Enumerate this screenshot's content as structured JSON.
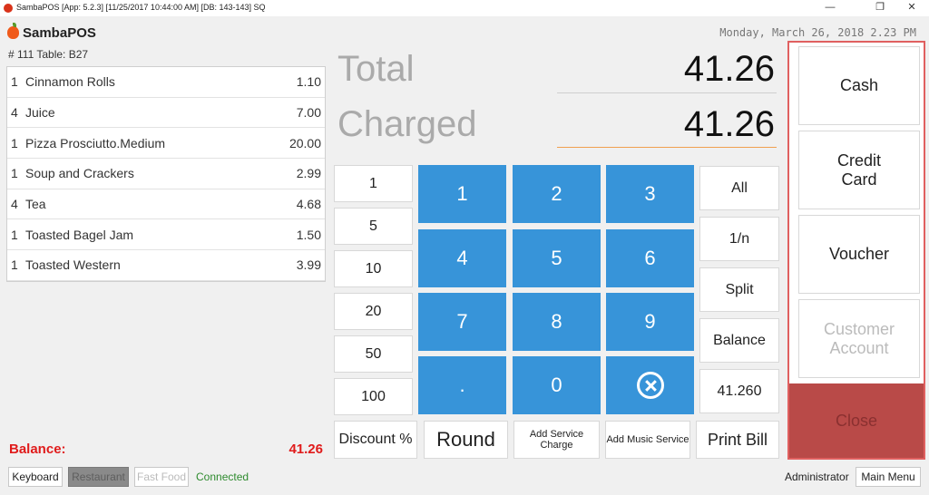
{
  "window": {
    "title": "SambaPOS [App: 5.2.3] [11/25/2017 10:44:00 AM] [DB: 143-143] SQ",
    "minimize": "—",
    "restore": "❐",
    "close": "✕"
  },
  "header": {
    "logo": "SambaPOS",
    "datetime": "Monday, March 26, 2018 2.23 PM",
    "ticket": "# 111 Table: B27"
  },
  "orders": [
    {
      "qty": "1",
      "item": "Cinnamon Rolls",
      "price": "1.10"
    },
    {
      "qty": "4",
      "item": "Juice",
      "price": "7.00"
    },
    {
      "qty": "1",
      "item": "Pizza Prosciutto.Medium",
      "price": "20.00"
    },
    {
      "qty": "1",
      "item": "Soup and Crackers",
      "price": "2.99"
    },
    {
      "qty": "4",
      "item": "Tea",
      "price": "4.68"
    },
    {
      "qty": "1",
      "item": "Toasted Bagel Jam",
      "price": "1.50"
    },
    {
      "qty": "1",
      "item": "Toasted Western",
      "price": "3.99"
    }
  ],
  "balance": {
    "label": "Balance:",
    "value": "41.26"
  },
  "footer": {
    "keyboard": "Keyboard",
    "restaurant": "Restaurant",
    "fast_food": "Fast Food",
    "status": "Connected",
    "user": "Administrator",
    "main_menu": "Main Menu"
  },
  "summary": {
    "total_label": "Total",
    "total_value": "41.26",
    "charged_label": "Charged",
    "charged_value": "41.26"
  },
  "tender_amounts": [
    "1",
    "5",
    "10",
    "20",
    "50",
    "100"
  ],
  "keypad": {
    "k1": "1",
    "k2": "2",
    "k3": "3",
    "k4": "4",
    "k5": "5",
    "k6": "6",
    "k7": "7",
    "k8": "8",
    "k9": "9",
    "dot": ".",
    "k0": "0",
    "clear_icon": "clear-circle-x-icon"
  },
  "side_buttons": [
    "All",
    "1/n",
    "Split",
    "Balance",
    "41.260"
  ],
  "bottom_buttons": {
    "discount": "Discount %",
    "round": "Round",
    "service_charge": "Add Service Charge",
    "music_service": "Add Music Service",
    "print_bill": "Print Bill"
  },
  "payment": {
    "cash": "Cash",
    "credit_card": "Credit Card",
    "voucher": "Voucher",
    "customer_account": "Customer Account",
    "close": "Close"
  },
  "colors": {
    "keypad_blue": "#3794d9",
    "balance_red": "#e01b1b",
    "close_red": "#b94a48",
    "highlight_border": "#e06060",
    "connected_green": "#2e8b2e"
  }
}
